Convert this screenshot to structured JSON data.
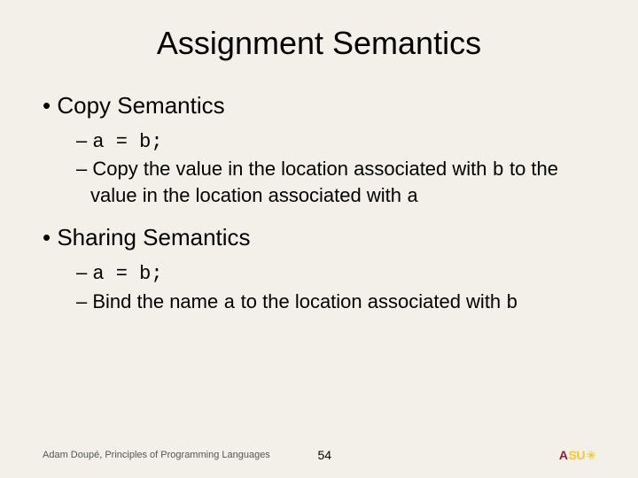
{
  "title": "Assignment Semantics",
  "sections": [
    {
      "heading": "Copy Semantics",
      "items": [
        {
          "code": "a = b;"
        },
        {
          "text_pre": "Copy the value in the location associated with ",
          "code1": "b",
          "text_mid": " to the value in the location associated with ",
          "code2": "a"
        }
      ]
    },
    {
      "heading": "Sharing Semantics",
      "items": [
        {
          "code": "a = b;"
        },
        {
          "text_pre": "Bind the name ",
          "code1": "a",
          "text_mid": " to the location associated with ",
          "code2": "b"
        }
      ]
    }
  ],
  "footer": {
    "author": "Adam Doupé, Principles of Programming Languages",
    "page": "54",
    "logo_a": "A",
    "logo_su": "SU"
  },
  "style": {
    "background": "#f2f0e9",
    "title_fontsize": 36,
    "body_fontsize": 26,
    "sub_fontsize": 22,
    "footer_fontsize": 11,
    "logo_maroon": "#8c1d40",
    "logo_gold": "#ffc627"
  }
}
